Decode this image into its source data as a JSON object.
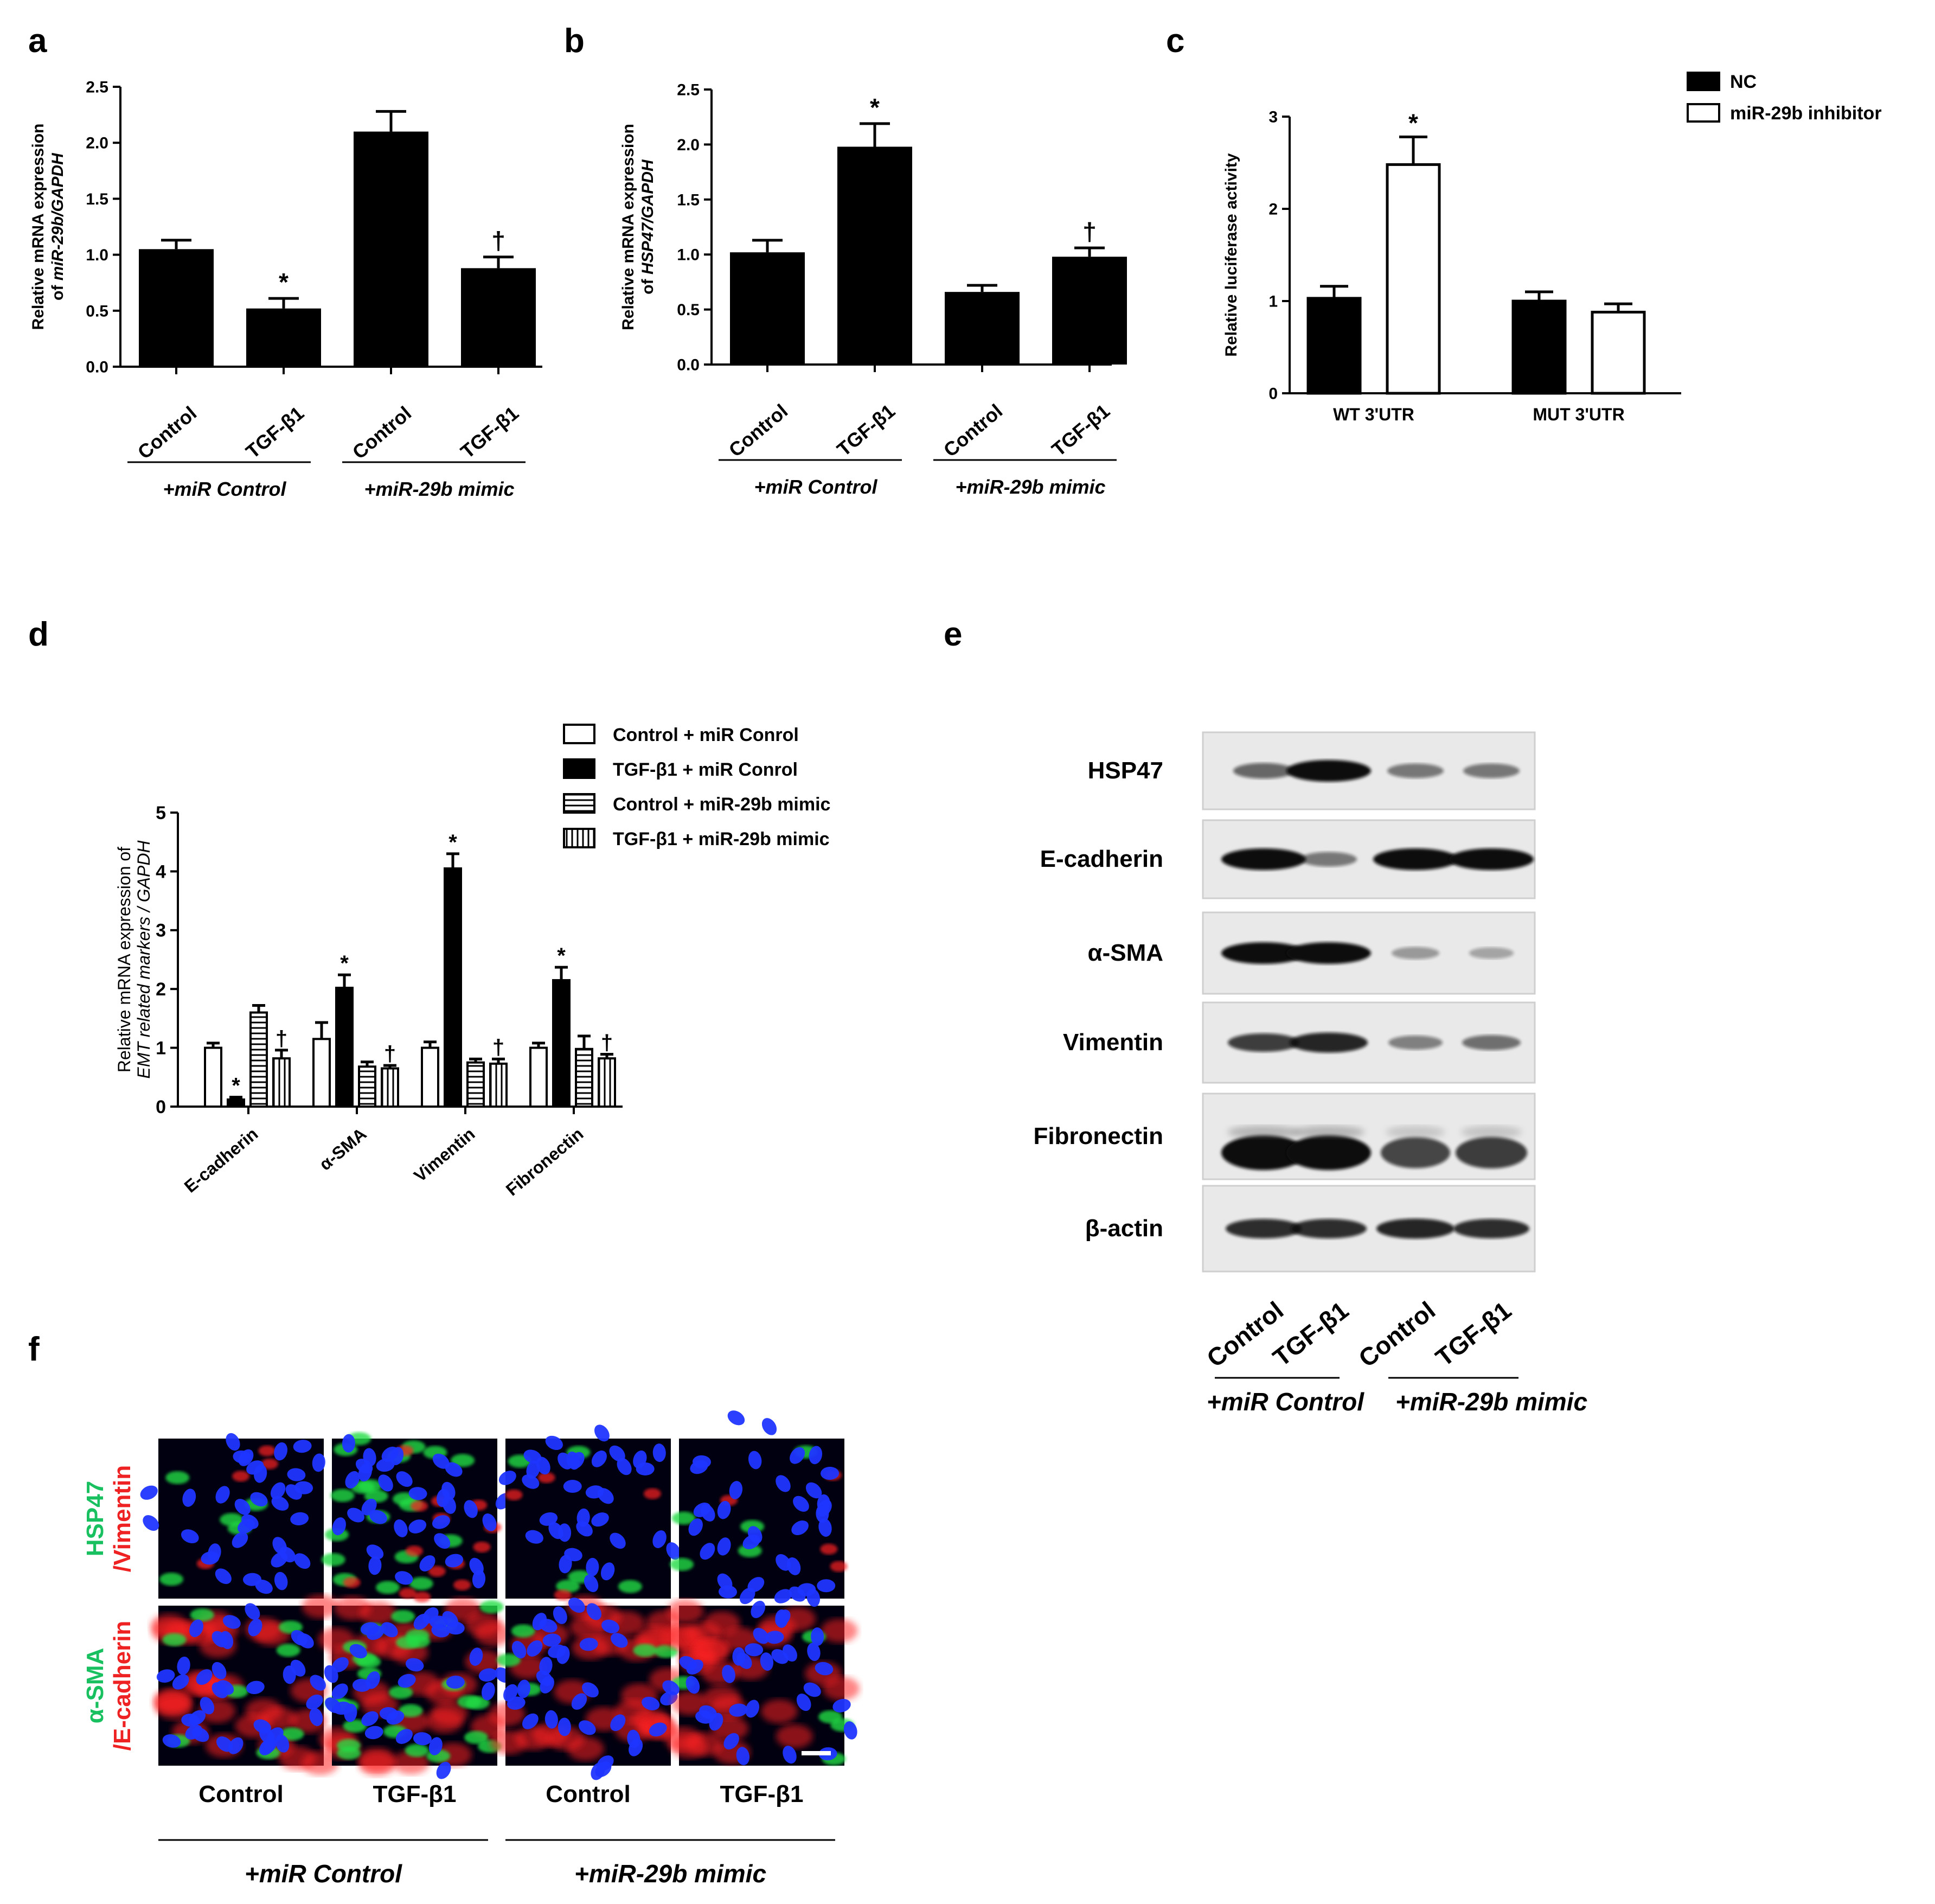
{
  "panel_labels": {
    "a": "a",
    "b": "b",
    "c": "c",
    "d": "d",
    "e": "e",
    "f": "f"
  },
  "group_labels": {
    "miR_control": "+miR Control",
    "mimic": "+miR-29b mimic"
  },
  "chart_data": [
    {
      "id": "a",
      "type": "bar",
      "categories": [
        "Control",
        "TGF-β1",
        "Control",
        "TGF-β1"
      ],
      "values": [
        1.05,
        0.52,
        2.1,
        0.88
      ],
      "errors": [
        0.08,
        0.09,
        0.18,
        0.1
      ],
      "annotations": [
        "",
        "*",
        "",
        "†"
      ],
      "ylabel_line1": "Relative mRNA expression",
      "ylabel_prefix": "of ",
      "ylabel_italic": "miR-29b/GAPDH",
      "ylim": [
        0,
        2.5
      ],
      "yticks": [
        "0.0",
        "0.5",
        "1.0",
        "1.5",
        "2.0",
        "2.5"
      ],
      "groups": [
        "+miR Control",
        "+miR-29b mimic"
      ]
    },
    {
      "id": "b",
      "type": "bar",
      "categories": [
        "Control",
        "TGF-β1",
        "Control",
        "TGF-β1"
      ],
      "values": [
        1.02,
        1.98,
        0.66,
        0.98
      ],
      "errors": [
        0.11,
        0.21,
        0.06,
        0.08
      ],
      "annotations": [
        "",
        "*",
        "",
        "†"
      ],
      "ylabel_line1": "Relative mRNA expression",
      "ylabel_prefix": "of ",
      "ylabel_italic": "HSP47/GAPDH",
      "ylim": [
        0,
        2.5
      ],
      "yticks": [
        "0.0",
        "0.5",
        "1.0",
        "1.5",
        "2.0",
        "2.5"
      ],
      "groups": [
        "+miR Control",
        "+miR-29b mimic"
      ]
    },
    {
      "id": "c",
      "type": "bar",
      "categories": [
        "WT 3'UTR",
        "MUT 3'UTR"
      ],
      "series": [
        {
          "name": "NC",
          "values": [
            1.03,
            1.0
          ],
          "errors": [
            0.13,
            0.1
          ]
        },
        {
          "name": "miR-29b inhibitor",
          "values": [
            2.48,
            0.88
          ],
          "errors": [
            0.3,
            0.09
          ]
        }
      ],
      "annotations": [
        [
          "",
          ""
        ],
        [
          "*",
          ""
        ]
      ],
      "ylabel": "Relative luciferase activity",
      "ylim": [
        0,
        3
      ],
      "yticks": [
        "0",
        "1",
        "2",
        "3"
      ]
    },
    {
      "id": "d",
      "type": "bar",
      "categories": [
        "E-cadherin",
        "α-SMA",
        "Vimentin",
        "Fibronectin"
      ],
      "series": [
        {
          "name": "Control + miR Conrol",
          "pattern": "white",
          "values": [
            1.0,
            1.15,
            1.0,
            1.0
          ],
          "errors": [
            0.08,
            0.28,
            0.1,
            0.08
          ]
        },
        {
          "name": "TGF-β1 + miR Conrol",
          "pattern": "black",
          "values": [
            0.12,
            2.02,
            4.05,
            2.15
          ],
          "errors": [
            0.04,
            0.22,
            0.25,
            0.22
          ]
        },
        {
          "name": "Control + miR-29b mimic",
          "pattern": "hstripe",
          "values": [
            1.6,
            0.68,
            0.75,
            0.98
          ],
          "errors": [
            0.12,
            0.08,
            0.06,
            0.22
          ]
        },
        {
          "name": "TGF-β1 + miR-29b mimic",
          "pattern": "vstripe",
          "values": [
            0.82,
            0.65,
            0.73,
            0.82
          ],
          "errors": [
            0.14,
            0.05,
            0.08,
            0.07
          ]
        }
      ],
      "annotations": [
        [
          "",
          "",
          "",
          ""
        ],
        [
          "*",
          "*",
          "*",
          "*"
        ],
        [
          "",
          "",
          "",
          ""
        ],
        [
          "†",
          "†",
          "†",
          "†"
        ]
      ],
      "ylabel_line1": "Relative mRNA expression of",
      "ylabel_italic": "EMT related markers / GAPDH",
      "ylim": [
        0,
        5
      ],
      "yticks": [
        "0",
        "1",
        "2",
        "3",
        "4",
        "5"
      ]
    },
    {
      "id": "e",
      "type": "table",
      "rows": [
        "HSP47",
        "E-cadherin",
        "α-SMA",
        "Vimentin",
        "Fibronectin",
        "β-actin"
      ],
      "lanes": [
        "Control",
        "TGF-β1",
        "Control",
        "TGF-β1"
      ],
      "band_intensity": [
        [
          0.45,
          1.0,
          0.35,
          0.35
        ],
        [
          1.0,
          0.35,
          1.0,
          1.0
        ],
        [
          1.0,
          1.0,
          0.15,
          0.08
        ],
        [
          0.7,
          0.85,
          0.3,
          0.4
        ],
        [
          1.0,
          1.0,
          0.65,
          0.7
        ],
        [
          0.8,
          0.8,
          0.85,
          0.8
        ]
      ],
      "groups": [
        "+miR Control",
        "+miR-29b mimic"
      ]
    }
  ],
  "panel_f": {
    "row_labels": [
      {
        "green": "HSP47",
        "red": "/Vimentin"
      },
      {
        "green": "α-SMA",
        "red": "/E-cadherin"
      }
    ],
    "columns": [
      "Control",
      "TGF-β1",
      "Control",
      "TGF-β1"
    ],
    "groups": [
      "+miR Control",
      "+miR-29b mimic"
    ],
    "colors": {
      "nucleus": "#1f35ff",
      "green": "#22dd44",
      "red": "#ff2020",
      "background": "#000010"
    }
  }
}
